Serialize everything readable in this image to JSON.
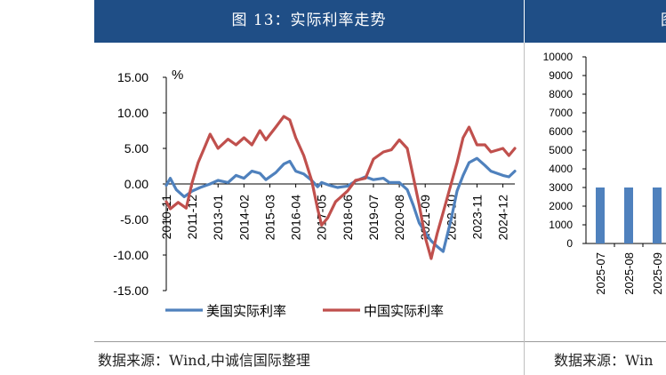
{
  "left_panel": {
    "title": "图 13：实际利率走势",
    "source": "数据来源：Wind,中诚信国际整理"
  },
  "right_panel": {
    "title": "图",
    "source": "数据来源：Win"
  },
  "colors": {
    "header_bg": "#1f4e86",
    "us_series": "#4f81bd",
    "cn_series": "#c0504d",
    "bar": "#4f81bd"
  },
  "chart_data": [
    {
      "type": "line",
      "ylabel": "%",
      "ylim": [
        -15,
        15
      ],
      "yticks": [
        "15.00",
        "10.00",
        "5.00",
        "0.00",
        "-5.00",
        "-10.00",
        "-15.00"
      ],
      "ytick_values": [
        15,
        10,
        5,
        0,
        -5,
        -10,
        -15
      ],
      "xticks": [
        "2010-11",
        "2011-12",
        "2013-01",
        "2014-02",
        "2015-03",
        "2016-04",
        "2017-05",
        "2018-06",
        "2019-07",
        "2020-08",
        "2021-09",
        "2022-10",
        "2023-11",
        "2024-12"
      ],
      "xlim": [
        "2010-11",
        "2025-06"
      ],
      "legend_position": "bottom",
      "series": [
        {
          "name": "美国实际利率",
          "points": [
            [
              "2010-11",
              -0.2
            ],
            [
              "2011-01",
              0.8
            ],
            [
              "2011-04",
              -0.8
            ],
            [
              "2011-08",
              -1.8
            ],
            [
              "2011-12",
              -1.0
            ],
            [
              "2012-04",
              -0.5
            ],
            [
              "2012-09",
              0.0
            ],
            [
              "2013-01",
              0.5
            ],
            [
              "2013-06",
              0.2
            ],
            [
              "2013-10",
              1.2
            ],
            [
              "2014-02",
              0.8
            ],
            [
              "2014-06",
              1.8
            ],
            [
              "2014-10",
              1.5
            ],
            [
              "2015-01",
              0.6
            ],
            [
              "2015-06",
              1.6
            ],
            [
              "2015-10",
              2.8
            ],
            [
              "2016-01",
              3.2
            ],
            [
              "2016-04",
              1.8
            ],
            [
              "2016-08",
              1.4
            ],
            [
              "2016-12",
              0.5
            ],
            [
              "2017-03",
              -0.4
            ],
            [
              "2017-05",
              0.2
            ],
            [
              "2017-09",
              -0.2
            ],
            [
              "2018-01",
              -0.5
            ],
            [
              "2018-06",
              -0.3
            ],
            [
              "2018-10",
              0.4
            ],
            [
              "2019-03",
              1.0
            ],
            [
              "2019-07",
              0.6
            ],
            [
              "2019-12",
              0.8
            ],
            [
              "2020-03",
              0.2
            ],
            [
              "2020-08",
              0.2
            ],
            [
              "2020-12",
              -0.8
            ],
            [
              "2021-03",
              -3.0
            ],
            [
              "2021-06",
              -5.5
            ],
            [
              "2021-09",
              -6.8
            ],
            [
              "2021-12",
              -8.0
            ],
            [
              "2022-03",
              -8.8
            ],
            [
              "2022-06",
              -9.5
            ],
            [
              "2022-10",
              -5.0
            ],
            [
              "2023-01",
              -1.0
            ],
            [
              "2023-04",
              1.2
            ],
            [
              "2023-07",
              3.0
            ],
            [
              "2023-11",
              3.6
            ],
            [
              "2024-03",
              2.6
            ],
            [
              "2024-06",
              1.8
            ],
            [
              "2024-12",
              1.2
            ],
            [
              "2025-03",
              1.0
            ],
            [
              "2025-06",
              1.8
            ]
          ]
        },
        {
          "name": "中国实际利率",
          "points": [
            [
              "2010-11",
              -2.5
            ],
            [
              "2011-01",
              -3.5
            ],
            [
              "2011-05",
              -2.6
            ],
            [
              "2011-09",
              -3.4
            ],
            [
              "2011-12",
              0.2
            ],
            [
              "2012-03",
              3.0
            ],
            [
              "2012-06",
              5.0
            ],
            [
              "2012-09",
              7.0
            ],
            [
              "2013-01",
              5.0
            ],
            [
              "2013-06",
              6.3
            ],
            [
              "2013-10",
              5.5
            ],
            [
              "2014-02",
              6.5
            ],
            [
              "2014-06",
              5.5
            ],
            [
              "2014-10",
              7.5
            ],
            [
              "2015-01",
              6.2
            ],
            [
              "2015-06",
              8.0
            ],
            [
              "2015-10",
              9.5
            ],
            [
              "2016-01",
              9.0
            ],
            [
              "2016-04",
              6.5
            ],
            [
              "2016-08",
              4.0
            ],
            [
              "2016-12",
              0.5
            ],
            [
              "2017-03",
              -3.5
            ],
            [
              "2017-05",
              -5.8
            ],
            [
              "2017-08",
              -4.8
            ],
            [
              "2017-12",
              -2.5
            ],
            [
              "2018-06",
              -1.0
            ],
            [
              "2018-10",
              0.5
            ],
            [
              "2019-03",
              0.8
            ],
            [
              "2019-07",
              3.5
            ],
            [
              "2019-12",
              4.5
            ],
            [
              "2020-04",
              4.8
            ],
            [
              "2020-08",
              6.2
            ],
            [
              "2020-12",
              5.0
            ],
            [
              "2021-03",
              1.0
            ],
            [
              "2021-06",
              -3.0
            ],
            [
              "2021-09",
              -7.5
            ],
            [
              "2021-12",
              -10.5
            ],
            [
              "2022-03",
              -7.0
            ],
            [
              "2022-06",
              -4.0
            ],
            [
              "2022-10",
              0.0
            ],
            [
              "2023-01",
              3.0
            ],
            [
              "2023-04",
              6.5
            ],
            [
              "2023-07",
              8.0
            ],
            [
              "2023-11",
              5.5
            ],
            [
              "2024-03",
              5.5
            ],
            [
              "2024-06",
              4.5
            ],
            [
              "2024-12",
              5.0
            ],
            [
              "2025-03",
              4.0
            ],
            [
              "2025-06",
              5.0
            ]
          ]
        }
      ]
    },
    {
      "type": "bar",
      "ylim": [
        0,
        10000
      ],
      "yticks": [
        "10000",
        "9000",
        "8000",
        "7000",
        "6000",
        "5000",
        "4000",
        "3000",
        "2000",
        "1000",
        "0"
      ],
      "ytick_values": [
        10000,
        9000,
        8000,
        7000,
        6000,
        5000,
        4000,
        3000,
        2000,
        1000,
        0
      ],
      "categories": [
        "2025-07",
        "2025-08",
        "2025-09"
      ],
      "values": [
        3000,
        3000,
        3000
      ]
    }
  ]
}
